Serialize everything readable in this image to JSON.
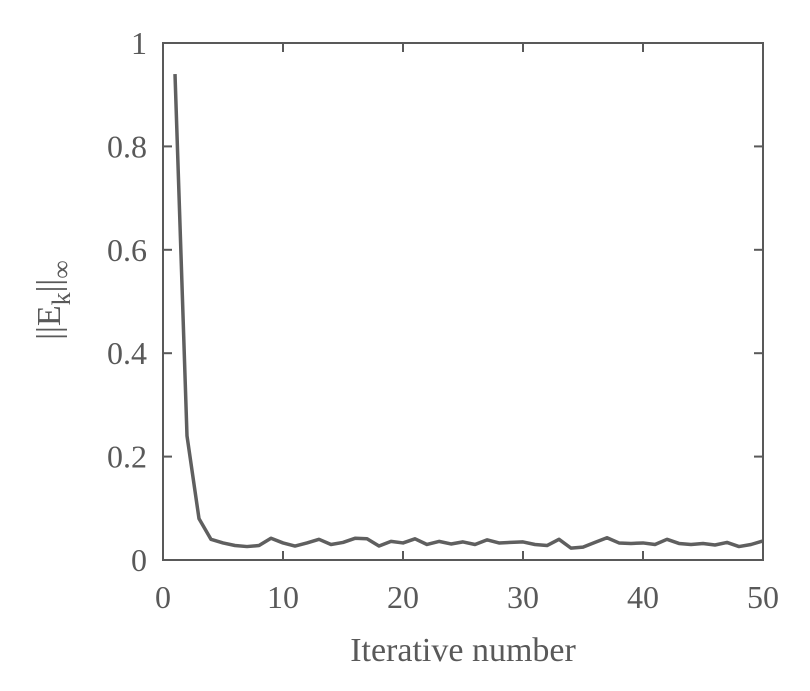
{
  "chart_data": {
    "type": "line",
    "xlabel": "Iterative number",
    "ylabel": {
      "norm_open": "||E",
      "subscript": "k",
      "norm_close": "||",
      "sub_symbol": "∞"
    },
    "xlim": [
      0,
      50
    ],
    "ylim": [
      0,
      1
    ],
    "xticks": [
      "0",
      "10",
      "20",
      "30",
      "40",
      "50"
    ],
    "yticks": [
      "0",
      "0.2",
      "0.4",
      "0.6",
      "0.8",
      "1"
    ],
    "grid": false,
    "series": [
      {
        "x": [
          1,
          2,
          3,
          4,
          5,
          6,
          7,
          8,
          9,
          10,
          11,
          12,
          13,
          14,
          15,
          16,
          17,
          18,
          19,
          20,
          21,
          22,
          23,
          24,
          25,
          26,
          27,
          28,
          29,
          30,
          31,
          32,
          33,
          34,
          35,
          36,
          37,
          38,
          39,
          40,
          41,
          42,
          43,
          44,
          45,
          46,
          47,
          48,
          49,
          50
        ],
        "values": [
          0.94,
          0.24,
          0.08,
          0.04,
          0.033,
          0.028,
          0.026,
          0.028,
          0.042,
          0.033,
          0.027,
          0.033,
          0.04,
          0.03,
          0.034,
          0.042,
          0.041,
          0.027,
          0.036,
          0.033,
          0.041,
          0.03,
          0.036,
          0.031,
          0.035,
          0.03,
          0.039,
          0.033,
          0.034,
          0.035,
          0.03,
          0.028,
          0.04,
          0.023,
          0.025,
          0.034,
          0.043,
          0.033,
          0.032,
          0.033,
          0.03,
          0.04,
          0.032,
          0.03,
          0.032,
          0.029,
          0.034,
          0.026,
          0.03,
          0.037
        ],
        "color": "#5f5f5f"
      }
    ]
  }
}
